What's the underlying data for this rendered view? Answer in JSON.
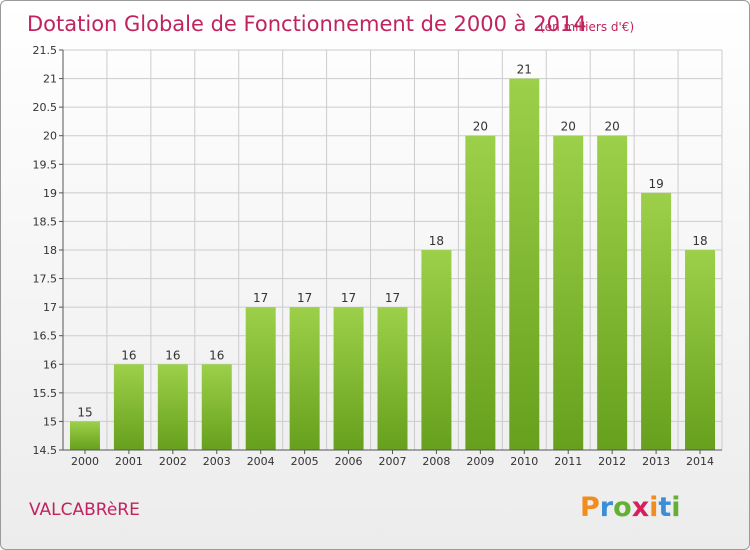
{
  "title": "Dotation Globale de Fonctionnement de 2000 à 2014",
  "unit": "(en milliers d'€)",
  "commune": "VALCABRèRE",
  "logo": {
    "letters": [
      "P",
      "r",
      "o",
      "x",
      "i",
      "t",
      "i"
    ],
    "colors": [
      "#f28c1c",
      "#3b8ed6",
      "#62b132",
      "#d81e5b",
      "#f28c1c",
      "#3b8ed6",
      "#62b132"
    ]
  },
  "colors": {
    "bar_light": "#9dd04a",
    "bar_dark": "#66a01c",
    "grid": "#cccccc",
    "title": "#c0235e"
  },
  "chart_data": {
    "type": "bar",
    "categories": [
      "2000",
      "2001",
      "2002",
      "2003",
      "2004",
      "2005",
      "2006",
      "2007",
      "2008",
      "2009",
      "2010",
      "2011",
      "2012",
      "2013",
      "2014"
    ],
    "values": [
      15,
      16,
      16,
      16,
      17,
      17,
      17,
      17,
      18,
      20,
      21,
      20,
      20,
      19,
      18
    ],
    "ylim": [
      14.5,
      21.5
    ],
    "yticks": [
      "14.5",
      "15",
      "15.5",
      "16",
      "16.5",
      "17",
      "17.5",
      "18",
      "18.5",
      "19",
      "19.5",
      "20",
      "20.5",
      "21",
      "21.5"
    ],
    "grid": true,
    "xlabel": "",
    "ylabel": ""
  }
}
